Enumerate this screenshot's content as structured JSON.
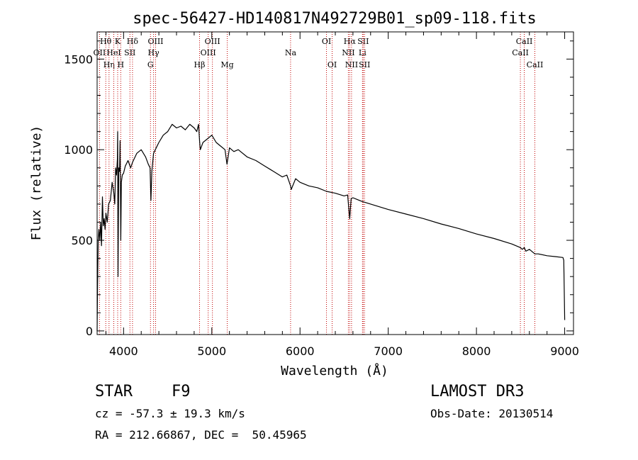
{
  "chart_data": {
    "type": "line",
    "title": "spec-56427-HD140817N492729B01_sp09-118.fits",
    "xlabel": "Wavelength (Å)",
    "ylabel": "Flux (relative)",
    "xlim": [
      3700,
      9100
    ],
    "ylim": [
      -20,
      1650
    ],
    "xticks": [
      4000,
      5000,
      6000,
      7000,
      8000,
      9000
    ],
    "yticks": [
      0,
      500,
      1000,
      1500
    ],
    "xtick_labels": [
      "4000",
      "5000",
      "6000",
      "7000",
      "8000",
      "9000"
    ],
    "ytick_labels": [
      "0",
      "500",
      "1000",
      "1500"
    ],
    "series": [
      {
        "name": "flux",
        "x": [
          3700,
          3705,
          3712,
          3720,
          3730,
          3740,
          3750,
          3760,
          3770,
          3780,
          3790,
          3800,
          3815,
          3830,
          3850,
          3870,
          3890,
          3900,
          3910,
          3920,
          3930,
          3933,
          3937,
          3945,
          3955,
          3960,
          3968,
          3975,
          3985,
          4000,
          4020,
          4050,
          4080,
          4101,
          4120,
          4150,
          4200,
          4250,
          4280,
          4300,
          4310,
          4320,
          4340,
          4360,
          4400,
          4450,
          4500,
          4550,
          4600,
          4650,
          4700,
          4750,
          4800,
          4830,
          4850,
          4861,
          4870,
          4900,
          4950,
          5000,
          5050,
          5100,
          5150,
          5172,
          5185,
          5200,
          5250,
          5300,
          5400,
          5500,
          5600,
          5700,
          5800,
          5850,
          5893,
          5900,
          5950,
          6000,
          6100,
          6200,
          6300,
          6400,
          6500,
          6540,
          6563,
          6580,
          6600,
          6700,
          6800,
          7000,
          7200,
          7400,
          7600,
          7800,
          8000,
          8200,
          8400,
          8498,
          8520,
          8542,
          8560,
          8600,
          8662,
          8700,
          8800,
          8900,
          8980,
          8990,
          9000
        ],
        "y": [
          0,
          250,
          500,
          560,
          500,
          600,
          470,
          740,
          580,
          620,
          560,
          650,
          600,
          700,
          720,
          820,
          760,
          700,
          900,
          860,
          950,
          1100,
          300,
          900,
          880,
          1050,
          500,
          820,
          860,
          870,
          910,
          940,
          900,
          930,
          950,
          980,
          1000,
          960,
          920,
          900,
          720,
          880,
          980,
          1000,
          1040,
          1080,
          1100,
          1140,
          1120,
          1130,
          1110,
          1140,
          1120,
          1100,
          1140,
          1050,
          1000,
          1040,
          1060,
          1080,
          1040,
          1020,
          1000,
          920,
          960,
          1010,
          990,
          1000,
          960,
          940,
          910,
          880,
          850,
          860,
          800,
          780,
          840,
          820,
          800,
          790,
          770,
          760,
          745,
          750,
          620,
          730,
          735,
          715,
          700,
          670,
          645,
          620,
          590,
          565,
          535,
          510,
          480,
          460,
          450,
          460,
          440,
          450,
          425,
          425,
          415,
          410,
          405,
          390,
          60
        ]
      }
    ],
    "line_labels": [
      {
        "label": "Hθ",
        "wavelength": 3798,
        "row": 1
      },
      {
        "label": "OII",
        "wavelength": 3727,
        "row": 2
      },
      {
        "label": "Hη",
        "wavelength": 3835,
        "row": 3
      },
      {
        "label": "K",
        "wavelength": 3933,
        "row": 1
      },
      {
        "label": "HeI",
        "wavelength": 3889,
        "row": 2
      },
      {
        "label": "H",
        "wavelength": 3968,
        "row": 3
      },
      {
        "label": "Hδ",
        "wavelength": 4101,
        "row": 1
      },
      {
        "label": "SII",
        "wavelength": 4072,
        "row": 2
      },
      {
        "label": "OIII",
        "wavelength": 4363,
        "row": 1
      },
      {
        "label": "Hγ",
        "wavelength": 4340,
        "row": 2
      },
      {
        "label": "G",
        "wavelength": 4305,
        "row": 3
      },
      {
        "label": "Hβ",
        "wavelength": 4861,
        "row": 3
      },
      {
        "label": "OIII",
        "wavelength": 5007,
        "row": 1
      },
      {
        "label": "OIII",
        "wavelength": 4959,
        "row": 2
      },
      {
        "label": "Mg",
        "wavelength": 5175,
        "row": 3
      },
      {
        "label": "Na",
        "wavelength": 5893,
        "row": 2
      },
      {
        "label": "OI",
        "wavelength": 6300,
        "row": 1
      },
      {
        "label": "OI",
        "wavelength": 6364,
        "row": 3
      },
      {
        "label": "Hα",
        "wavelength": 6563,
        "row": 1
      },
      {
        "label": "NII",
        "wavelength": 6548,
        "row": 2
      },
      {
        "label": "NII",
        "wavelength": 6584,
        "row": 3
      },
      {
        "label": "SII",
        "wavelength": 6716,
        "row": 1
      },
      {
        "label": "Li",
        "wavelength": 6708,
        "row": 2
      },
      {
        "label": "SII",
        "wavelength": 6731,
        "row": 3
      },
      {
        "label": "CaII",
        "wavelength": 8542,
        "row": 1
      },
      {
        "label": "CaII",
        "wavelength": 8498,
        "row": 2
      },
      {
        "label": "CaII",
        "wavelength": 8662,
        "row": 3
      }
    ]
  },
  "info": {
    "object_class": "STAR",
    "subclass": "F9",
    "cz": "cz = -57.3 ± 19.3 km/s",
    "coords": "RA = 212.66867, DEC =  50.45965",
    "survey": "LAMOST DR3",
    "obs_date": "Obs-Date: 20130514"
  },
  "colors": {
    "line_marker": "#c00000",
    "spectrum": "#000000"
  }
}
